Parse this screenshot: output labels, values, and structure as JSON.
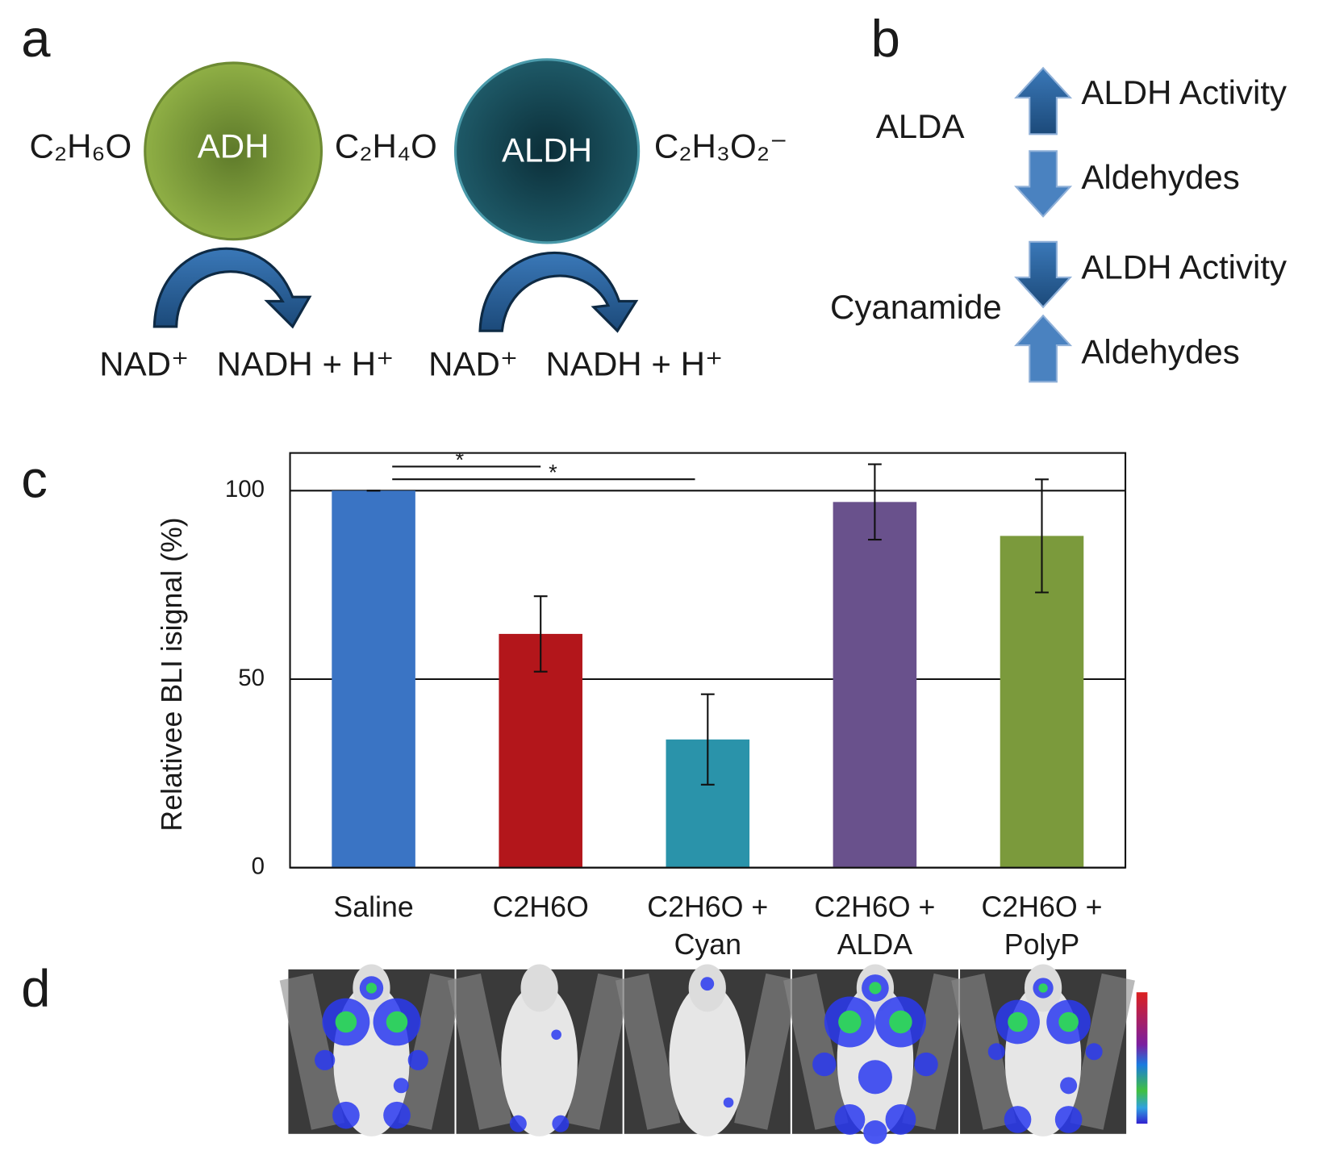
{
  "panels": {
    "a": "a",
    "b": "b",
    "c": "c",
    "d": "d"
  },
  "diagram_a": {
    "substrate": "C₂H₆O",
    "enzyme1": "ADH",
    "intermediate": "C₂H₄O",
    "enzyme2": "ALDH",
    "product": "C₂H₃O₂⁻",
    "cofactor1_in": "NAD⁺",
    "cofactor1_out": "NADH + H⁺",
    "cofactor2_in": "NAD⁺",
    "cofactor2_out": "NADH + H⁺"
  },
  "diagram_b": {
    "groups": [
      {
        "agent": "ALDA",
        "effects": [
          "ALDH Activity",
          "Aldehydes"
        ]
      },
      {
        "agent": "Cyanamide",
        "effects": [
          "ALDH Activity",
          "Aldehydes"
        ]
      }
    ]
  },
  "chart_data": {
    "type": "bar",
    "y_label": "Relativee BLI isignal (%)",
    "categories": [
      "Saline",
      "C2H6O",
      "C2H6O + Cyan",
      "C2H6O + ALDA",
      "C2H6O + PolyP"
    ],
    "values": [
      100,
      62,
      34,
      97,
      88
    ],
    "errors": [
      0,
      10,
      12,
      10,
      15
    ],
    "colors": [
      "#3a74c4",
      "#b3161b",
      "#2a93aa",
      "#69518c",
      "#7b9a3c"
    ],
    "ylim": [
      0,
      110
    ],
    "yticks": [
      0,
      50,
      100
    ],
    "grid": true,
    "significance": [
      {
        "from": 0,
        "to": 1,
        "label": "*"
      },
      {
        "from": 0,
        "to": 2,
        "label": "*"
      }
    ]
  }
}
